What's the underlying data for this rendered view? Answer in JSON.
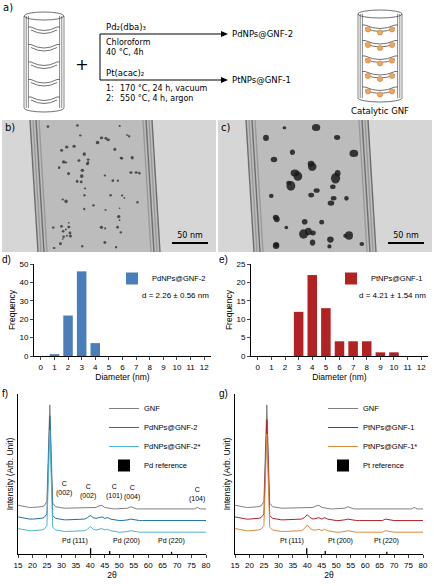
{
  "scheme": {
    "panel": "a)",
    "plus": "+",
    "routes": [
      {
        "reagent": "Pd₂(dba)₃",
        "conditions": [
          [
            "Chloroform"
          ],
          [
            "40 °C, 4h"
          ]
        ],
        "product": "PdNPs@GNF-2"
      },
      {
        "reagent": "Pt(acac)₂",
        "conditions": [
          [
            "1:",
            "170 °C, 24 h, vacuum"
          ],
          [
            "2:",
            "550 °C, 4 h, argon"
          ]
        ],
        "product": "PtNPs@GNF-1"
      }
    ],
    "result": "Catalytic GNF"
  },
  "micrographs": [
    {
      "panel": "b)",
      "scale_bar": "50 nm"
    },
    {
      "panel": "c)",
      "scale_bar": "50 nm"
    }
  ],
  "chart_data": [
    {
      "panel": "d)",
      "type": "bar",
      "xlabel": "Diameter (nm)",
      "ylabel": "Frequency",
      "x": [
        1,
        2,
        3,
        4
      ],
      "series": [
        {
          "name": "PdNPs@GNF-2",
          "color": "#4a7ebb",
          "values": [
            1,
            22,
            46,
            7
          ]
        }
      ],
      "xlim": [
        -0.5,
        12.5
      ],
      "xticks": [
        0,
        1,
        2,
        3,
        4,
        5,
        6,
        7,
        8,
        9,
        10,
        11,
        12
      ],
      "ylim": [
        0,
        50
      ],
      "yticks": [
        0,
        10,
        20,
        30,
        40,
        50
      ],
      "legend": "upper right",
      "annotations": [
        {
          "text": "d = 2.26 ± 0.56 nm"
        }
      ]
    },
    {
      "panel": "e)",
      "type": "bar",
      "xlabel": "Diameter (nm)",
      "ylabel": "Frequency",
      "x": [
        3,
        4,
        5,
        6,
        7,
        8,
        9,
        10
      ],
      "series": [
        {
          "name": "PtNPs@GNF-1",
          "color": "#b22222",
          "values": [
            12,
            22,
            13,
            4,
            4,
            4,
            1,
            1
          ]
        }
      ],
      "xlim": [
        -0.5,
        12.5
      ],
      "xticks": [
        0,
        1,
        2,
        3,
        4,
        5,
        6,
        7,
        8,
        9,
        10,
        11,
        12
      ],
      "ylim": [
        0,
        25
      ],
      "yticks": [
        0,
        5,
        10,
        15,
        20,
        25
      ],
      "legend": "upper right",
      "annotations": [
        {
          "text": "d = 4.21 ± 1.54 nm"
        }
      ]
    },
    {
      "panel": "f)",
      "type": "line",
      "xlabel": "2θ",
      "ylabel": "Intensity (Arb. Unit)",
      "x": [
        15,
        16,
        17,
        18,
        19,
        20,
        21,
        22,
        23,
        24,
        25,
        26,
        27,
        28,
        29,
        30,
        31,
        32,
        33,
        34,
        35,
        36,
        37,
        38,
        39,
        40,
        41,
        42,
        43,
        44,
        45,
        46,
        47,
        48,
        49,
        50,
        51,
        52,
        53,
        54,
        55,
        56,
        57,
        58,
        59,
        60,
        61,
        62,
        63,
        64,
        65,
        66,
        67,
        68,
        69,
        70,
        71,
        72,
        73,
        74,
        75,
        76,
        77,
        78,
        79,
        80
      ],
      "series": [
        {
          "name": "GNF",
          "color": "#808080",
          "values": [
            67,
            66,
            65,
            65,
            64,
            64,
            64,
            65,
            65,
            66,
            72,
            205,
            70,
            65,
            64,
            64,
            63,
            63,
            63,
            63,
            63,
            63,
            63,
            63,
            63,
            63,
            63,
            64,
            66,
            67,
            64,
            63,
            63,
            62,
            62,
            62,
            62,
            62,
            63,
            65,
            63,
            62,
            62,
            62,
            62,
            62,
            62,
            62,
            62,
            62,
            62,
            62,
            62,
            62,
            62,
            62,
            62,
            62,
            62,
            62,
            62,
            62,
            64,
            62,
            62,
            62
          ]
        },
        {
          "name": "PdNPs@GNF-2",
          "color": "#1f6fae",
          "values": [
            51,
            50,
            49,
            49,
            48,
            48,
            48,
            49,
            49,
            50,
            55,
            190,
            53,
            49,
            48,
            48,
            47,
            47,
            47,
            47,
            47,
            47,
            47,
            48,
            50,
            53,
            50,
            49,
            50,
            51,
            49,
            50,
            48,
            47,
            47,
            46,
            46,
            46,
            47,
            48,
            47,
            46,
            46,
            46,
            46,
            46,
            46,
            46,
            46,
            46,
            46,
            46,
            47,
            47,
            46,
            46,
            46,
            46,
            46,
            46,
            46,
            46,
            47,
            46,
            46,
            46
          ]
        },
        {
          "name": "PdNPs@GNF-2*",
          "color": "#4fb3d1",
          "values": [
            35,
            34,
            33,
            33,
            32,
            32,
            32,
            33,
            33,
            34,
            39,
            170,
            37,
            33,
            32,
            32,
            31,
            31,
            31,
            31,
            31,
            31,
            31,
            32,
            34,
            38,
            34,
            33,
            34,
            35,
            33,
            34,
            32,
            31,
            31,
            30,
            30,
            30,
            31,
            32,
            31,
            30,
            30,
            30,
            30,
            30,
            30,
            30,
            30,
            30,
            30,
            30,
            31,
            31,
            30,
            30,
            30,
            30,
            30,
            30,
            30,
            30,
            31,
            30,
            30,
            30
          ]
        },
        {
          "name": "Pd reference",
          "color": "#000000",
          "type": "bar",
          "x": [
            40.1,
            46.7,
            68.1
          ],
          "values": [
            8,
            4,
            3
          ]
        }
      ],
      "xlim": [
        15,
        80
      ],
      "xticks": [
        15,
        20,
        25,
        30,
        35,
        40,
        45,
        50,
        55,
        60,
        65,
        70,
        75,
        80
      ],
      "ylim": [
        0,
        220
      ],
      "tick_labels": "x",
      "legend": "upper right",
      "annotations": [
        {
          "text": "C\n(002)",
          "x": 31,
          "y": 75
        },
        {
          "text": "C\n(002)",
          "x": 43,
          "y": 71
        },
        {
          "text": "C\n(101)",
          "x": 44.5,
          "y": 71
        },
        {
          "text": "C\n(004)",
          "x": 54.5,
          "y": 70
        },
        {
          "text": "C\n(104)",
          "x": 77,
          "y": 68
        },
        {
          "text": "Pd (111)",
          "x": 40.1,
          "y": 10
        },
        {
          "text": "Pd (200)",
          "x": 46.7,
          "y": 10
        },
        {
          "text": "Pd (220)",
          "x": 68.1,
          "y": 10
        }
      ]
    },
    {
      "panel": "g)",
      "type": "line",
      "xlabel": "2θ",
      "ylabel": "Intensity (Arb. Unit)",
      "x": [
        15,
        16,
        17,
        18,
        19,
        20,
        21,
        22,
        23,
        24,
        25,
        26,
        27,
        28,
        29,
        30,
        31,
        32,
        33,
        34,
        35,
        36,
        37,
        38,
        39,
        40,
        41,
        42,
        43,
        44,
        45,
        46,
        47,
        48,
        49,
        50,
        51,
        52,
        53,
        54,
        55,
        56,
        57,
        58,
        59,
        60,
        61,
        62,
        63,
        64,
        65,
        66,
        67,
        68,
        69,
        70,
        71,
        72,
        73,
        74,
        75,
        76,
        77,
        78,
        79,
        80
      ],
      "series": [
        {
          "name": "GNF",
          "color": "#808080",
          "values": [
            67,
            66,
            65,
            65,
            64,
            64,
            64,
            65,
            65,
            66,
            72,
            205,
            70,
            65,
            64,
            64,
            63,
            63,
            63,
            63,
            63,
            63,
            63,
            63,
            63,
            63,
            63,
            64,
            66,
            67,
            64,
            63,
            63,
            62,
            62,
            62,
            62,
            62,
            63,
            65,
            63,
            62,
            62,
            62,
            62,
            62,
            62,
            62,
            62,
            62,
            62,
            62,
            62,
            62,
            62,
            62,
            62,
            62,
            62,
            62,
            62,
            62,
            64,
            62,
            62,
            62
          ]
        },
        {
          "name": "PtNPs@GNF-1",
          "color": "#b3202a",
          "values": [
            51,
            50,
            49,
            49,
            48,
            48,
            48,
            49,
            49,
            50,
            55,
            185,
            53,
            49,
            48,
            48,
            47,
            47,
            47,
            47,
            47,
            47,
            47,
            48,
            50,
            54,
            50,
            48,
            49,
            50,
            48,
            50,
            48,
            47,
            47,
            46,
            46,
            46,
            47,
            48,
            47,
            46,
            46,
            46,
            46,
            46,
            46,
            46,
            46,
            46,
            46,
            46,
            48,
            47,
            46,
            46,
            46,
            46,
            46,
            46,
            46,
            46,
            47,
            46,
            46,
            46
          ]
        },
        {
          "name": "PtNPs@GNF-1*",
          "color": "#d98a3d",
          "values": [
            35,
            34,
            33,
            33,
            32,
            32,
            32,
            33,
            33,
            34,
            39,
            165,
            37,
            33,
            32,
            32,
            31,
            31,
            31,
            31,
            31,
            31,
            31,
            32,
            35,
            40,
            35,
            33,
            33,
            34,
            32,
            34,
            32,
            31,
            31,
            30,
            30,
            30,
            31,
            32,
            31,
            30,
            30,
            30,
            30,
            30,
            30,
            30,
            30,
            30,
            30,
            30,
            32,
            31,
            30,
            30,
            30,
            30,
            30,
            30,
            30,
            30,
            31,
            30,
            30,
            30
          ]
        },
        {
          "name": "Pt reference",
          "color": "#000000",
          "type": "bar",
          "x": [
            39.8,
            46.2,
            67.5
          ],
          "values": [
            8,
            4,
            3
          ]
        }
      ],
      "xlim": [
        15,
        80
      ],
      "xticks": [
        15,
        20,
        25,
        30,
        35,
        40,
        45,
        50,
        55,
        60,
        65,
        70,
        75,
        80
      ],
      "ylim": [
        0,
        220
      ],
      "tick_labels": "x",
      "legend": "upper right",
      "annotations": [
        {
          "text": "Pt (111)",
          "x": 39.8,
          "y": 10
        },
        {
          "text": "Pt (200)",
          "x": 46.2,
          "y": 10
        },
        {
          "text": "Pt (220)",
          "x": 67.5,
          "y": 10
        }
      ]
    }
  ]
}
